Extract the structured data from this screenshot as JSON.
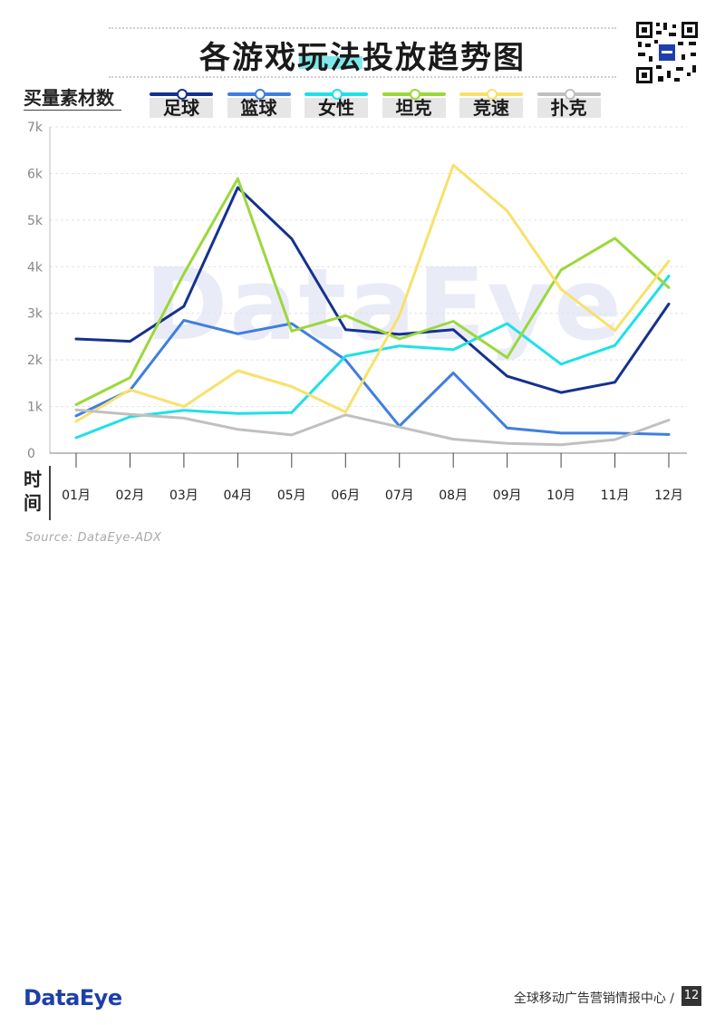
{
  "header": {
    "title": "各游戏玩法投放趋势图"
  },
  "footer": {
    "logo": "DataEye",
    "text": "全球移动广告营销情报中心 /",
    "page": "12"
  },
  "watermark": "DataEye",
  "chart_data": {
    "type": "line",
    "title": "各游戏玩法投放趋势图",
    "ylabel": "买量素材数",
    "xlabel": "时间",
    "source": "Source: DataEye-ADX",
    "categories": [
      "01月",
      "02月",
      "03月",
      "04月",
      "05月",
      "06月",
      "07月",
      "08月",
      "09月",
      "10月",
      "11月",
      "12月"
    ],
    "ylim": [
      0,
      7000
    ],
    "yticks": [
      0,
      1000,
      2000,
      3000,
      4000,
      5000,
      6000,
      7000
    ],
    "ytick_labels": [
      "0",
      "1k",
      "2k",
      "3k",
      "4k",
      "5k",
      "6k",
      "7k"
    ],
    "grid": true,
    "legend_position": "top",
    "series": [
      {
        "name": "足球",
        "color": "#15318f",
        "values": [
          2450,
          2400,
          3150,
          5700,
          4600,
          2650,
          2550,
          2650,
          1650,
          1300,
          1520,
          3200
        ]
      },
      {
        "name": "篮球",
        "color": "#3f7fe0",
        "values": [
          800,
          1350,
          2850,
          2560,
          2780,
          2000,
          580,
          1720,
          540,
          430,
          430,
          400
        ]
      },
      {
        "name": "女性",
        "color": "#1fe0e8",
        "values": [
          330,
          780,
          920,
          850,
          870,
          2080,
          2300,
          2220,
          2780,
          1910,
          2310,
          3800
        ]
      },
      {
        "name": "坦克",
        "color": "#9bd83a",
        "values": [
          1040,
          1620,
          3850,
          5890,
          2620,
          2950,
          2450,
          2830,
          2050,
          3930,
          4610,
          3550
        ]
      },
      {
        "name": "竞速",
        "color": "#f8e16b",
        "values": [
          680,
          1360,
          1000,
          1770,
          1430,
          880,
          2950,
          6180,
          5200,
          3520,
          2630,
          4120
        ]
      },
      {
        "name": "扑克",
        "color": "#c0c0c0",
        "values": [
          930,
          830,
          750,
          510,
          390,
          820,
          560,
          300,
          210,
          180,
          290,
          710
        ]
      }
    ]
  }
}
